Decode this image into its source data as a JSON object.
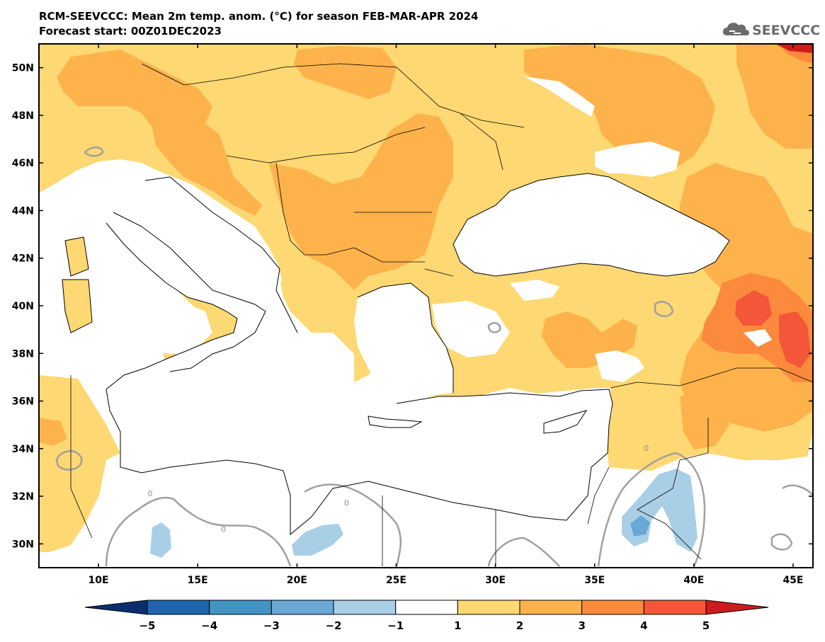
{
  "title_line1": "RCM-SEEVCCC: Mean 2m temp. anom. (°C) for season FEB-MAR-APR 2024",
  "title_line2": "Forecast start: 00Z01DEC2023",
  "logo_text": "SEEVCCC",
  "map": {
    "lon_range": [
      7,
      46
    ],
    "lat_range": [
      29,
      51
    ],
    "lon_ticks": [
      {
        "value": 10,
        "label": "10E"
      },
      {
        "value": 15,
        "label": "15E"
      },
      {
        "value": 20,
        "label": "20E"
      },
      {
        "value": 25,
        "label": "25E"
      },
      {
        "value": 30,
        "label": "30E"
      },
      {
        "value": 35,
        "label": "35E"
      },
      {
        "value": 40,
        "label": "40E"
      },
      {
        "value": 45,
        "label": "45E"
      }
    ],
    "lat_ticks": [
      {
        "value": 30,
        "label": "30N"
      },
      {
        "value": 32,
        "label": "32N"
      },
      {
        "value": 34,
        "label": "34N"
      },
      {
        "value": 36,
        "label": "36N"
      },
      {
        "value": 38,
        "label": "38N"
      },
      {
        "value": 40,
        "label": "40N"
      },
      {
        "value": 42,
        "label": "42N"
      },
      {
        "value": 44,
        "label": "44N"
      },
      {
        "value": 46,
        "label": "46N"
      },
      {
        "value": 48,
        "label": "48N"
      },
      {
        "value": 50,
        "label": "50N"
      }
    ],
    "contour_labels": [
      {
        "text": "0",
        "lon": 12.6,
        "lat": 32.0
      },
      {
        "text": "0",
        "lon": 16.3,
        "lat": 30.5
      },
      {
        "text": "0",
        "lon": 22.5,
        "lat": 31.6
      },
      {
        "text": "0",
        "lon": 37.6,
        "lat": 33.9
      }
    ]
  },
  "colorbar": {
    "levels": [
      "−5",
      "−4",
      "−3",
      "−2",
      "−1",
      "1",
      "2",
      "3",
      "4",
      "5"
    ],
    "colors": [
      "#0b2f6e",
      "#2166ac",
      "#4393c3",
      "#6aa8d6",
      "#a9cfe6",
      "#ffffff",
      "#fdd873",
      "#fdb24c",
      "#fc8a3c",
      "#f4563a",
      "#cf1b1b"
    ]
  },
  "colors": {
    "land_neutral": "#ffffff",
    "sea": "#ffffff",
    "anom_1_2": "#fdd873",
    "anom_2_3": "#fdb24c",
    "anom_3_4": "#fc8a3c",
    "anom_4_5": "#f4563a",
    "anom_gt5": "#cf1b1b",
    "anom_m2_m1": "#a9cfe6",
    "anom_m3_m2": "#6aa8d6",
    "contour_zero": "#a0a0a0",
    "borders": "#000000"
  }
}
